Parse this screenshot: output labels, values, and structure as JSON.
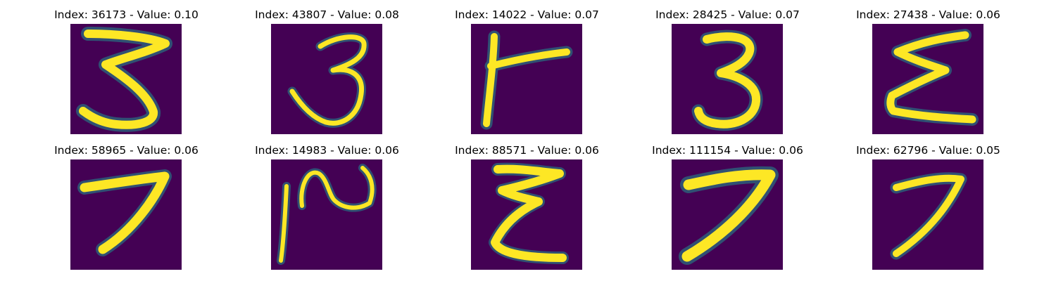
{
  "colors": {
    "background": "#440154",
    "stroke_core": "#fde725",
    "stroke_edge": "#5ec962",
    "stroke_halo": "#21918c"
  },
  "panels": [
    {
      "title": "Index: 36173 - Value: 0.10",
      "index": 36173,
      "value": 0.1
    },
    {
      "title": "Index: 43807 - Value: 0.08",
      "index": 43807,
      "value": 0.08
    },
    {
      "title": "Index: 14022 - Value: 0.07",
      "index": 14022,
      "value": 0.07
    },
    {
      "title": "Index: 28425 - Value: 0.07",
      "index": 28425,
      "value": 0.07
    },
    {
      "title": "Index: 27438 - Value: 0.06",
      "index": 27438,
      "value": 0.06
    },
    {
      "title": "Index: 58965 - Value: 0.06",
      "index": 58965,
      "value": 0.06
    },
    {
      "title": "Index: 14983 - Value: 0.06",
      "index": 14983,
      "value": 0.06
    },
    {
      "title": "Index: 88571 - Value: 0.06",
      "index": 88571,
      "value": 0.06
    },
    {
      "title": "Index: 111154 - Value: 0.06",
      "index": 111154,
      "value": 0.06
    },
    {
      "title": "Index: 62796 - Value: 0.05",
      "index": 62796,
      "value": 0.05
    }
  ]
}
